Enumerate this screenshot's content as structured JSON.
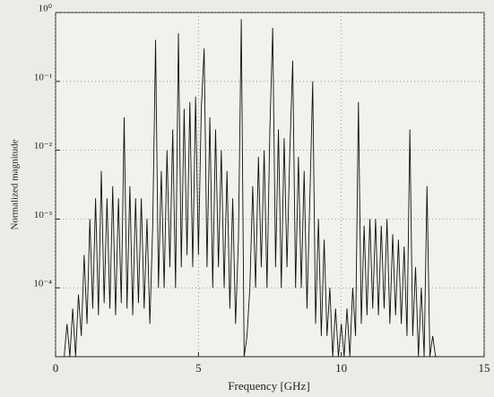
{
  "chart_data": {
    "type": "line",
    "xlabel": "Frequency [GHz]",
    "ylabel": "Normalized magnitude",
    "x": [
      0.3,
      0.4,
      0.5,
      0.6,
      0.7,
      0.8,
      0.9,
      1.0,
      1.1,
      1.2,
      1.3,
      1.4,
      1.5,
      1.6,
      1.7,
      1.8,
      1.9,
      2.0,
      2.1,
      2.2,
      2.3,
      2.4,
      2.5,
      2.6,
      2.7,
      2.8,
      2.9,
      3.0,
      3.1,
      3.2,
      3.3,
      3.4,
      3.5,
      3.6,
      3.7,
      3.8,
      3.9,
      4.0,
      4.1,
      4.2,
      4.3,
      4.4,
      4.5,
      4.6,
      4.7,
      4.8,
      4.9,
      5.0,
      5.1,
      5.2,
      5.3,
      5.4,
      5.5,
      5.6,
      5.7,
      5.8,
      5.9,
      6.0,
      6.1,
      6.2,
      6.3,
      6.4,
      6.5,
      6.6,
      6.7,
      6.8,
      6.9,
      7.0,
      7.1,
      7.2,
      7.3,
      7.4,
      7.5,
      7.6,
      7.7,
      7.8,
      7.9,
      8.0,
      8.1,
      8.2,
      8.3,
      8.4,
      8.5,
      8.6,
      8.7,
      8.8,
      8.9,
      9.0,
      9.1,
      9.2,
      9.3,
      9.4,
      9.5,
      9.6,
      9.7,
      9.8,
      9.9,
      10.0,
      10.1,
      10.2,
      10.3,
      10.4,
      10.5,
      10.6,
      10.7,
      10.8,
      10.9,
      11.0,
      11.1,
      11.2,
      11.3,
      11.4,
      11.5,
      11.6,
      11.7,
      11.8,
      11.9,
      12.0,
      12.1,
      12.2,
      12.3,
      12.4,
      12.5,
      12.6,
      12.7,
      12.8,
      12.9,
      13.0,
      13.1,
      13.2,
      13.3,
      13.4
    ],
    "values": [
      1e-05,
      3e-05,
      1e-05,
      5e-05,
      1e-05,
      8e-05,
      2e-05,
      0.0003,
      3e-05,
      0.001,
      5e-05,
      0.002,
      4e-05,
      0.005,
      6e-05,
      0.002,
      5e-05,
      0.003,
      4e-05,
      0.002,
      6e-05,
      0.03,
      5e-05,
      0.003,
      4e-05,
      0.002,
      6e-05,
      0.002,
      5e-05,
      0.001,
      3e-05,
      0.0008,
      0.4,
      0.0001,
      0.005,
      0.0001,
      0.01,
      0.0002,
      0.02,
      0.0001,
      0.5,
      0.0002,
      0.04,
      0.0003,
      0.05,
      0.0002,
      0.06,
      0.0003,
      0.04,
      0.3,
      0.0002,
      0.03,
      0.0001,
      0.02,
      0.0002,
      0.01,
      0.0001,
      0.005,
      5e-05,
      0.002,
      3e-05,
      0.0005,
      0.8,
      1e-05,
      2e-05,
      0.0001,
      0.003,
      0.0001,
      0.008,
      0.0002,
      0.01,
      0.0001,
      0.02,
      0.6,
      0.0002,
      0.02,
      0.0001,
      0.015,
      0.0002,
      0.01,
      0.2,
      0.0001,
      0.008,
      0.0001,
      0.005,
      5e-05,
      0.002,
      0.1,
      3e-05,
      0.001,
      2e-05,
      0.0005,
      2e-05,
      0.0001,
      1e-05,
      5e-05,
      1e-05,
      3e-05,
      1e-05,
      5e-05,
      1e-05,
      0.0001,
      2e-05,
      0.05,
      3e-05,
      0.0008,
      4e-05,
      0.001,
      5e-05,
      0.001,
      4e-05,
      0.0008,
      5e-05,
      0.001,
      3e-05,
      0.0006,
      4e-05,
      0.0005,
      3e-05,
      0.0004,
      2e-05,
      0.02,
      2e-05,
      0.0002,
      1e-05,
      0.0001,
      1e-05,
      0.003,
      1e-05,
      2e-05,
      1e-05,
      1e-05
    ],
    "color": "#111111",
    "xlim": [
      0,
      15
    ],
    "xticks": [
      0,
      5,
      10,
      15
    ],
    "ylim": [
      1e-05,
      1
    ],
    "ylog": true,
    "yticks": [
      {
        "value": 0.0001,
        "label": "10⁻⁴"
      },
      {
        "value": 0.001,
        "label": "10⁻³"
      },
      {
        "value": 0.01,
        "label": "10⁻²"
      },
      {
        "value": 0.1,
        "label": "10⁻¹"
      },
      {
        "value": 1,
        "label": "10⁰"
      }
    ],
    "grid": true
  }
}
